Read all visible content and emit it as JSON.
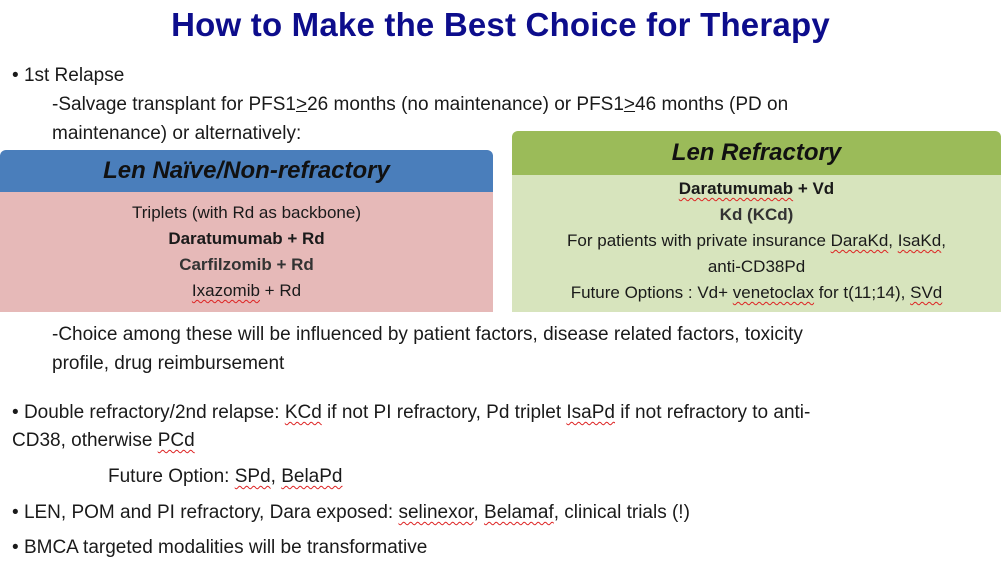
{
  "title": "How to Make the Best Choice for Therapy",
  "first_relapse": {
    "bullet": "•",
    "label": "1st Relapse",
    "salvage_a": "-Salvage transplant for PFS1",
    "ge1": ">",
    "salvage_b": "26 months (no maintenance) or PFS1",
    "ge2": ">",
    "salvage_c": "46 months (PD on",
    "salvage_line2": "maintenance) or alternatively:"
  },
  "len_naive": {
    "header": "Len Naïve/Non-refractory",
    "line1": "Triplets (with Rd as backbone)",
    "line2": "Daratumumab + Rd",
    "line3": "Carfilzomib + Rd",
    "line4_a": "Ixazomib",
    "line4_b": " + Rd"
  },
  "len_refractory": {
    "header": "Len Refractory",
    "line1_a": "Daratumumab",
    "line1_b": " + Vd",
    "line2": "Kd (KCd)",
    "line3_a": "For patients with private insurance ",
    "line3_b": "DaraKd",
    "line3_c": ", ",
    "line3_d": "IsaKd",
    "line3_e": ",",
    "line4": "anti-CD38Pd",
    "line5_a": "Future Options :  Vd+ ",
    "line5_b": "venetoclax",
    "line5_c": " for t(11;14), ",
    "line5_d": "SVd"
  },
  "choice": {
    "line1": "-Choice among these will be influenced by patient factors, disease related factors, toxicity",
    "line2": "profile, drug reimbursement"
  },
  "double_refractory": {
    "bullet": "•",
    "a": "Double refractory/2nd relapse: ",
    "b": "KCd",
    "c": " if not PI refractory, Pd triplet ",
    "d": "IsaPd",
    "e": " if not refractory to anti-",
    "line2_a": "CD38, otherwise ",
    "line2_b": "PCd"
  },
  "future_option": {
    "a": "Future Option: ",
    "b": "SPd",
    "c": ", ",
    "d": "BelaPd"
  },
  "len_pom": {
    "bullet": "•",
    "a": "LEN, POM and PI refractory, Dara exposed: ",
    "b": "selinexor",
    "c": ", ",
    "d": "Belamaf",
    "e": ", clinical trials (!)"
  },
  "bmca": {
    "bullet": "•",
    "text": "BMCA targeted modalities will be transformative"
  }
}
